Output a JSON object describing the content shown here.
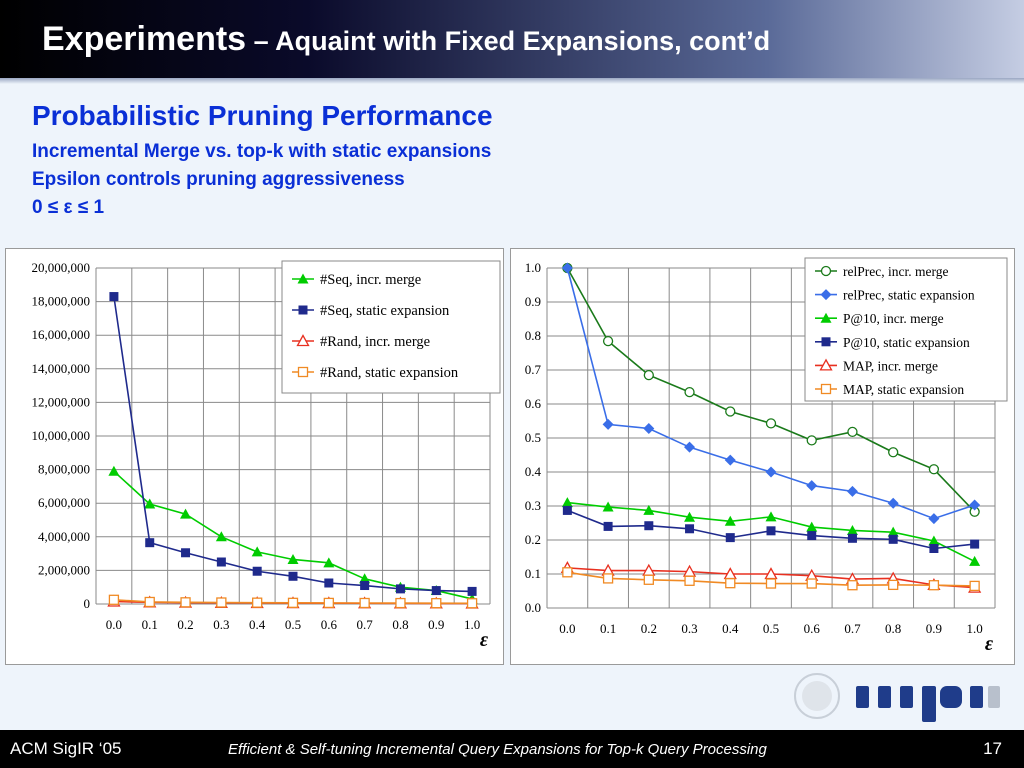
{
  "slide": {
    "title_main": "Experiments",
    "title_sub": " – Aquaint with Fixed Expansions, cont’d",
    "heading": "Probabilistic Pruning Performance",
    "lines": [
      "Incremental Merge vs. top-k with static expansions",
      "Epsilon controls pruning aggressiveness",
      " 0 ≤ ε ≤ 1"
    ],
    "footer_left": "ACM SigIR ‘05",
    "footer_center": "Efficient & Self-tuning Incremental Query Expansions for Top-k Query Processing",
    "page_number": "17",
    "logo_text": "mpi"
  },
  "chart_data": [
    {
      "type": "line",
      "x": [
        0.0,
        0.1,
        0.2,
        0.3,
        0.4,
        0.5,
        0.6,
        0.7,
        0.8,
        0.9,
        1.0
      ],
      "x_tick_labels": [
        "0.0",
        "0.1",
        "0.2",
        "0.3",
        "0.4",
        "0.5",
        "0.6",
        "0.7",
        "0.8",
        "0.9",
        "1.0"
      ],
      "xlabel": "ε",
      "ylim": [
        0,
        20000000
      ],
      "y_ticks": [
        0,
        2000000,
        4000000,
        6000000,
        8000000,
        10000000,
        12000000,
        14000000,
        16000000,
        18000000,
        20000000
      ],
      "y_tick_labels": [
        "0",
        "2,000,000",
        "4,000,000",
        "6,000,000",
        "8,000,000",
        "10,000,000",
        "12,000,000",
        "14,000,000",
        "16,000,000",
        "18,000,000",
        "20,000,000"
      ],
      "grid": true,
      "legend": "top-right",
      "series": [
        {
          "name": "#Seq, incr. merge",
          "color": "#00cc00",
          "marker": "triangle-filled",
          "values": [
            7900000,
            5950000,
            5350000,
            4000000,
            3100000,
            2650000,
            2450000,
            1500000,
            1000000,
            800000,
            300000
          ]
        },
        {
          "name": "#Seq, static expansion",
          "color": "#1f2a8c",
          "marker": "square-filled",
          "values": [
            18300000,
            3650000,
            3050000,
            2500000,
            1950000,
            1650000,
            1250000,
            1100000,
            900000,
            800000,
            750000
          ]
        },
        {
          "name": "#Rand, incr. merge",
          "color": "#e83020",
          "marker": "triangle-open",
          "values": [
            150000,
            100000,
            80000,
            70000,
            60000,
            55000,
            50000,
            45000,
            40000,
            35000,
            30000
          ]
        },
        {
          "name": "#Rand, static expansion",
          "color": "#f08a24",
          "marker": "square-open",
          "values": [
            250000,
            120000,
            100000,
            90000,
            80000,
            70000,
            65000,
            60000,
            55000,
            50000,
            45000
          ]
        }
      ]
    },
    {
      "type": "line",
      "x": [
        0.0,
        0.1,
        0.2,
        0.3,
        0.4,
        0.5,
        0.6,
        0.7,
        0.8,
        0.9,
        1.0
      ],
      "x_tick_labels": [
        "0.0",
        "0.1",
        "0.2",
        "0.3",
        "0.4",
        "0.5",
        "0.6",
        "0.7",
        "0.8",
        "0.9",
        "1.0"
      ],
      "xlabel": "ε",
      "ylim": [
        0,
        1.0
      ],
      "y_ticks": [
        0,
        0.1,
        0.2,
        0.3,
        0.4,
        0.5,
        0.6,
        0.7,
        0.8,
        0.9,
        1.0
      ],
      "y_tick_labels": [
        "0.0",
        "0.1",
        "0.2",
        "0.3",
        "0.4",
        "0.5",
        "0.6",
        "0.7",
        "0.8",
        "0.9",
        "1.0"
      ],
      "grid": true,
      "legend": "top-right",
      "series": [
        {
          "name": "relPrec, incr. merge",
          "color": "#1a7a1a",
          "marker": "circle-open",
          "values": [
            1.0,
            0.785,
            0.685,
            0.635,
            0.578,
            0.543,
            0.493,
            0.518,
            0.458,
            0.408,
            0.283
          ]
        },
        {
          "name": "relPrec, static expansion",
          "color": "#3a6ee8",
          "marker": "diamond-filled",
          "values": [
            1.0,
            0.54,
            0.528,
            0.473,
            0.435,
            0.4,
            0.36,
            0.343,
            0.308,
            0.263,
            0.303
          ]
        },
        {
          "name": "P@10, incr. merge",
          "color": "#00cc00",
          "marker": "triangle-filled",
          "values": [
            0.31,
            0.297,
            0.287,
            0.267,
            0.255,
            0.268,
            0.238,
            0.228,
            0.223,
            0.197,
            0.137
          ]
        },
        {
          "name": "P@10, static expansion",
          "color": "#1f2a8c",
          "marker": "square-filled",
          "values": [
            0.287,
            0.24,
            0.242,
            0.233,
            0.207,
            0.227,
            0.213,
            0.205,
            0.202,
            0.175,
            0.188
          ]
        },
        {
          "name": "MAP,  incr. merge",
          "color": "#e83020",
          "marker": "triangle-open",
          "values": [
            0.118,
            0.11,
            0.11,
            0.107,
            0.1,
            0.1,
            0.095,
            0.085,
            0.087,
            0.068,
            0.06
          ]
        },
        {
          "name": "MAP,  static expansion",
          "color": "#f08a24",
          "marker": "square-open",
          "values": [
            0.105,
            0.087,
            0.083,
            0.08,
            0.073,
            0.072,
            0.072,
            0.067,
            0.068,
            0.067,
            0.065
          ]
        }
      ]
    }
  ]
}
